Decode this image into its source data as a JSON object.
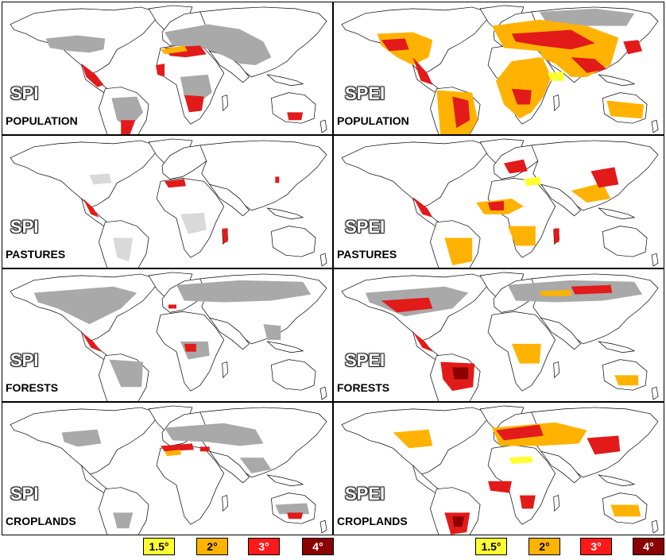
{
  "panels": [
    {
      "index": "SPI",
      "layer": "POPULATION"
    },
    {
      "index": "SPEI",
      "layer": "POPULATION"
    },
    {
      "index": "SPI",
      "layer": "PASTURES"
    },
    {
      "index": "SPEI",
      "layer": "PASTURES"
    },
    {
      "index": "SPI",
      "layer": "FORESTS"
    },
    {
      "index": "SPEI",
      "layer": "FORESTS"
    },
    {
      "index": "SPI",
      "layer": "CROPLANDS"
    },
    {
      "index": "SPEI",
      "layer": "CROPLANDS"
    }
  ],
  "legend": [
    {
      "label": "1.5°",
      "color": "#ffff33",
      "text_color": "#000000"
    },
    {
      "label": "2°",
      "color": "#ffb300",
      "text_color": "#000000"
    },
    {
      "label": "3°",
      "color": "#ff1a1a",
      "text_color": "#ffffff"
    },
    {
      "label": "4°",
      "color": "#8b0000",
      "text_color": "#ffffff"
    }
  ],
  "colors": {
    "exposed_area": "#a9a9a9",
    "land": "#ffffff",
    "outline": "#000000"
  }
}
